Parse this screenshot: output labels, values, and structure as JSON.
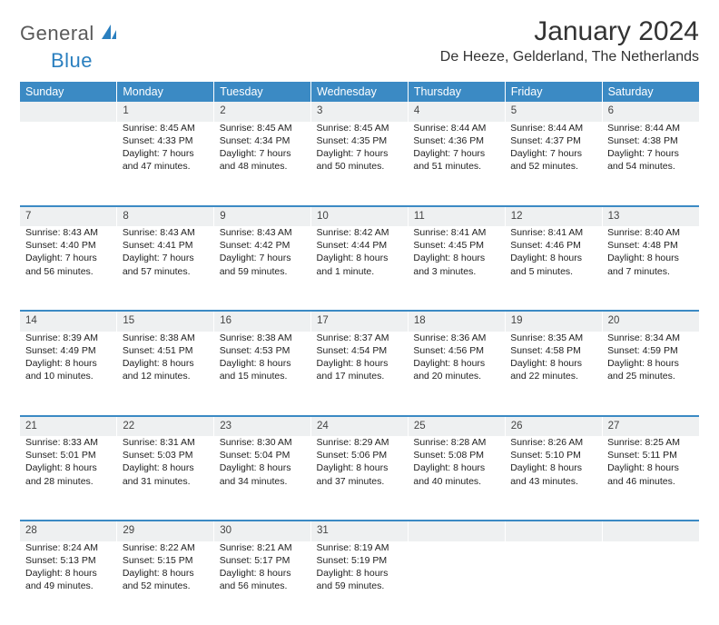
{
  "logo": {
    "part1": "General",
    "part2": "Blue"
  },
  "title": "January 2024",
  "location": "De Heeze, Gelderland, The Netherlands",
  "colors": {
    "header_bg": "#3b8ac4",
    "header_text": "#ffffff",
    "daynum_bg": "#eef0f1",
    "daynum_text": "#444444",
    "body_text": "#222222",
    "rule": "#3b8ac4",
    "logo_gray": "#5a5a5a",
    "logo_blue": "#2a7fbf"
  },
  "columns": [
    "Sunday",
    "Monday",
    "Tuesday",
    "Wednesday",
    "Thursday",
    "Friday",
    "Saturday"
  ],
  "weeks": [
    {
      "nums": [
        "",
        "1",
        "2",
        "3",
        "4",
        "5",
        "6"
      ],
      "cells": [
        null,
        {
          "sunrise": "Sunrise: 8:45 AM",
          "sunset": "Sunset: 4:33 PM",
          "daylight": "Daylight: 7 hours and 47 minutes."
        },
        {
          "sunrise": "Sunrise: 8:45 AM",
          "sunset": "Sunset: 4:34 PM",
          "daylight": "Daylight: 7 hours and 48 minutes."
        },
        {
          "sunrise": "Sunrise: 8:45 AM",
          "sunset": "Sunset: 4:35 PM",
          "daylight": "Daylight: 7 hours and 50 minutes."
        },
        {
          "sunrise": "Sunrise: 8:44 AM",
          "sunset": "Sunset: 4:36 PM",
          "daylight": "Daylight: 7 hours and 51 minutes."
        },
        {
          "sunrise": "Sunrise: 8:44 AM",
          "sunset": "Sunset: 4:37 PM",
          "daylight": "Daylight: 7 hours and 52 minutes."
        },
        {
          "sunrise": "Sunrise: 8:44 AM",
          "sunset": "Sunset: 4:38 PM",
          "daylight": "Daylight: 7 hours and 54 minutes."
        }
      ]
    },
    {
      "nums": [
        "7",
        "8",
        "9",
        "10",
        "11",
        "12",
        "13"
      ],
      "cells": [
        {
          "sunrise": "Sunrise: 8:43 AM",
          "sunset": "Sunset: 4:40 PM",
          "daylight": "Daylight: 7 hours and 56 minutes."
        },
        {
          "sunrise": "Sunrise: 8:43 AM",
          "sunset": "Sunset: 4:41 PM",
          "daylight": "Daylight: 7 hours and 57 minutes."
        },
        {
          "sunrise": "Sunrise: 8:43 AM",
          "sunset": "Sunset: 4:42 PM",
          "daylight": "Daylight: 7 hours and 59 minutes."
        },
        {
          "sunrise": "Sunrise: 8:42 AM",
          "sunset": "Sunset: 4:44 PM",
          "daylight": "Daylight: 8 hours and 1 minute."
        },
        {
          "sunrise": "Sunrise: 8:41 AM",
          "sunset": "Sunset: 4:45 PM",
          "daylight": "Daylight: 8 hours and 3 minutes."
        },
        {
          "sunrise": "Sunrise: 8:41 AM",
          "sunset": "Sunset: 4:46 PM",
          "daylight": "Daylight: 8 hours and 5 minutes."
        },
        {
          "sunrise": "Sunrise: 8:40 AM",
          "sunset": "Sunset: 4:48 PM",
          "daylight": "Daylight: 8 hours and 7 minutes."
        }
      ]
    },
    {
      "nums": [
        "14",
        "15",
        "16",
        "17",
        "18",
        "19",
        "20"
      ],
      "cells": [
        {
          "sunrise": "Sunrise: 8:39 AM",
          "sunset": "Sunset: 4:49 PM",
          "daylight": "Daylight: 8 hours and 10 minutes."
        },
        {
          "sunrise": "Sunrise: 8:38 AM",
          "sunset": "Sunset: 4:51 PM",
          "daylight": "Daylight: 8 hours and 12 minutes."
        },
        {
          "sunrise": "Sunrise: 8:38 AM",
          "sunset": "Sunset: 4:53 PM",
          "daylight": "Daylight: 8 hours and 15 minutes."
        },
        {
          "sunrise": "Sunrise: 8:37 AM",
          "sunset": "Sunset: 4:54 PM",
          "daylight": "Daylight: 8 hours and 17 minutes."
        },
        {
          "sunrise": "Sunrise: 8:36 AM",
          "sunset": "Sunset: 4:56 PM",
          "daylight": "Daylight: 8 hours and 20 minutes."
        },
        {
          "sunrise": "Sunrise: 8:35 AM",
          "sunset": "Sunset: 4:58 PM",
          "daylight": "Daylight: 8 hours and 22 minutes."
        },
        {
          "sunrise": "Sunrise: 8:34 AM",
          "sunset": "Sunset: 4:59 PM",
          "daylight": "Daylight: 8 hours and 25 minutes."
        }
      ]
    },
    {
      "nums": [
        "21",
        "22",
        "23",
        "24",
        "25",
        "26",
        "27"
      ],
      "cells": [
        {
          "sunrise": "Sunrise: 8:33 AM",
          "sunset": "Sunset: 5:01 PM",
          "daylight": "Daylight: 8 hours and 28 minutes."
        },
        {
          "sunrise": "Sunrise: 8:31 AM",
          "sunset": "Sunset: 5:03 PM",
          "daylight": "Daylight: 8 hours and 31 minutes."
        },
        {
          "sunrise": "Sunrise: 8:30 AM",
          "sunset": "Sunset: 5:04 PM",
          "daylight": "Daylight: 8 hours and 34 minutes."
        },
        {
          "sunrise": "Sunrise: 8:29 AM",
          "sunset": "Sunset: 5:06 PM",
          "daylight": "Daylight: 8 hours and 37 minutes."
        },
        {
          "sunrise": "Sunrise: 8:28 AM",
          "sunset": "Sunset: 5:08 PM",
          "daylight": "Daylight: 8 hours and 40 minutes."
        },
        {
          "sunrise": "Sunrise: 8:26 AM",
          "sunset": "Sunset: 5:10 PM",
          "daylight": "Daylight: 8 hours and 43 minutes."
        },
        {
          "sunrise": "Sunrise: 8:25 AM",
          "sunset": "Sunset: 5:11 PM",
          "daylight": "Daylight: 8 hours and 46 minutes."
        }
      ]
    },
    {
      "nums": [
        "28",
        "29",
        "30",
        "31",
        "",
        "",
        ""
      ],
      "cells": [
        {
          "sunrise": "Sunrise: 8:24 AM",
          "sunset": "Sunset: 5:13 PM",
          "daylight": "Daylight: 8 hours and 49 minutes."
        },
        {
          "sunrise": "Sunrise: 8:22 AM",
          "sunset": "Sunset: 5:15 PM",
          "daylight": "Daylight: 8 hours and 52 minutes."
        },
        {
          "sunrise": "Sunrise: 8:21 AM",
          "sunset": "Sunset: 5:17 PM",
          "daylight": "Daylight: 8 hours and 56 minutes."
        },
        {
          "sunrise": "Sunrise: 8:19 AM",
          "sunset": "Sunset: 5:19 PM",
          "daylight": "Daylight: 8 hours and 59 minutes."
        },
        null,
        null,
        null
      ]
    }
  ]
}
